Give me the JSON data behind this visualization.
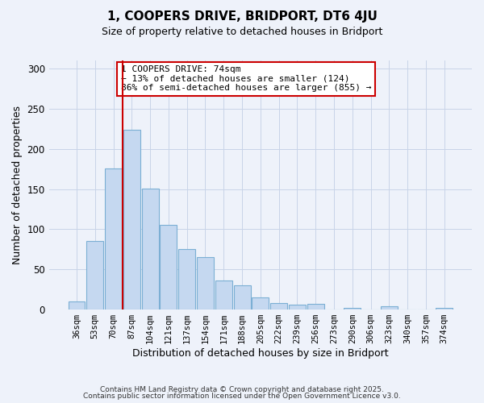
{
  "title": "1, COOPERS DRIVE, BRIDPORT, DT6 4JU",
  "subtitle": "Size of property relative to detached houses in Bridport",
  "xlabel": "Distribution of detached houses by size in Bridport",
  "ylabel": "Number of detached properties",
  "bar_labels": [
    "36sqm",
    "53sqm",
    "70sqm",
    "87sqm",
    "104sqm",
    "121sqm",
    "137sqm",
    "154sqm",
    "171sqm",
    "188sqm",
    "205sqm",
    "222sqm",
    "239sqm",
    "256sqm",
    "273sqm",
    "290sqm",
    "306sqm",
    "323sqm",
    "340sqm",
    "357sqm",
    "374sqm"
  ],
  "bar_values": [
    10,
    85,
    176,
    224,
    151,
    105,
    75,
    65,
    36,
    30,
    15,
    8,
    6,
    7,
    0,
    2,
    0,
    4,
    0,
    0,
    2
  ],
  "bar_color": "#c5d8f0",
  "bar_edge_color": "#7bafd4",
  "background_color": "#eef2fa",
  "grid_color": "#c8d4e8",
  "vline_x_index": 2,
  "vline_color": "#cc0000",
  "annotation_title": "1 COOPERS DRIVE: 74sqm",
  "annotation_line1": "← 13% of detached houses are smaller (124)",
  "annotation_line2": "86% of semi-detached houses are larger (855) →",
  "annotation_box_color": "#ffffff",
  "annotation_box_edge_color": "#cc0000",
  "ylim": [
    0,
    310
  ],
  "yticks": [
    0,
    50,
    100,
    150,
    200,
    250,
    300
  ],
  "footnote1": "Contains HM Land Registry data © Crown copyright and database right 2025.",
  "footnote2": "Contains public sector information licensed under the Open Government Licence v3.0."
}
